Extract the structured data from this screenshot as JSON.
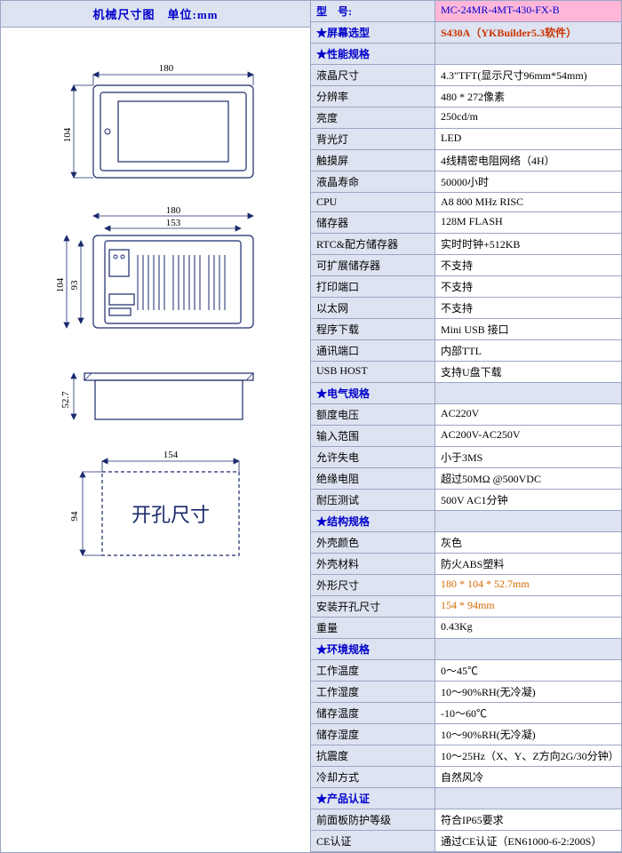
{
  "left_header": "机械尺寸图　单位:mm",
  "model_label": "型　号:",
  "model_value": "MC-24MR-4MT-430-FX-B",
  "screen_label": "★屏幕选型",
  "screen_value": "S430A（YKBuilder5.3软件）",
  "perf_header": "★性能规格",
  "perf_rows": [
    {
      "label": "液晶尺寸",
      "value": "4.3″TFT(显示尺寸96mm*54mm)"
    },
    {
      "label": "分辨率",
      "value": "480 * 272像素"
    },
    {
      "label": "亮度",
      "value": "250cd/m"
    },
    {
      "label": "背光灯",
      "value": "LED"
    },
    {
      "label": "触摸屏",
      "value": "4线精密电阻网络（4H）"
    },
    {
      "label": "液晶寿命",
      "value": "50000小时"
    },
    {
      "label": "CPU",
      "value": "A8 800 MHz RISC"
    },
    {
      "label": "储存器",
      "value": "128M FLASH"
    },
    {
      "label": "RTC&配方储存器",
      "value": "实时时钟+512KB"
    },
    {
      "label": "可扩展储存器",
      "value": "不支持"
    },
    {
      "label": "打印端口",
      "value": "不支持"
    },
    {
      "label": "以太网",
      "value": "不支持"
    },
    {
      "label": "程序下载",
      "value": "Mini USB 接口"
    },
    {
      "label": "通讯端口",
      "value": "内部TTL"
    },
    {
      "label": "USB HOST",
      "value": "支持U盘下载"
    }
  ],
  "elec_header": "★电气规格",
  "elec_rows": [
    {
      "label": "额度电压",
      "value": "AC220V"
    },
    {
      "label": "输入范围",
      "value": "AC200V-AC250V"
    },
    {
      "label": "允许失电",
      "value": "小于3MS"
    },
    {
      "label": "绝缘电阻",
      "value": "超过50MΩ @500VDC"
    },
    {
      "label": "耐压测试",
      "value": "500V AC1分钟"
    }
  ],
  "struct_header": "★结构规格",
  "struct_rows": [
    {
      "label": "外壳颜色",
      "value": "灰色"
    },
    {
      "label": "外壳材料",
      "value": "防火ABS塑料"
    },
    {
      "label": "外形尺寸",
      "value": "180 * 104 * 52.7mm",
      "highlight": true
    },
    {
      "label": "安装开孔尺寸",
      "value": "154 * 94mm",
      "highlight": true
    },
    {
      "label": "重量",
      "value": "0.43Kg"
    }
  ],
  "env_header": "★环境规格",
  "env_rows": [
    {
      "label": "工作温度",
      "value": "0～45℃"
    },
    {
      "label": "工作湿度",
      "value": "10～90%RH(无冷凝)"
    },
    {
      "label": "储存温度",
      "value": "-10～60℃"
    },
    {
      "label": "储存湿度",
      "value": "10～90%RH(无冷凝)"
    },
    {
      "label": "抗震度",
      "value": "10～25Hz（X、Y、Z方向2G/30分钟）"
    },
    {
      "label": "冷却方式",
      "value": "自然风冷"
    }
  ],
  "cert_header": "★产品认证",
  "cert_rows": [
    {
      "label": "前面板防护等级",
      "value": "符合IP65要求"
    },
    {
      "label": "CE认证",
      "value": "通过CE认证（EN61000-6-2:200S）"
    }
  ],
  "dims": {
    "front_w": "180",
    "front_h": "104",
    "back_w": "180",
    "back_w2": "153",
    "back_h": "104",
    "back_h2": "93",
    "side_h": "52.7",
    "cutout_w": "154",
    "cutout_h": "94",
    "cutout_label": "开孔尺寸"
  }
}
